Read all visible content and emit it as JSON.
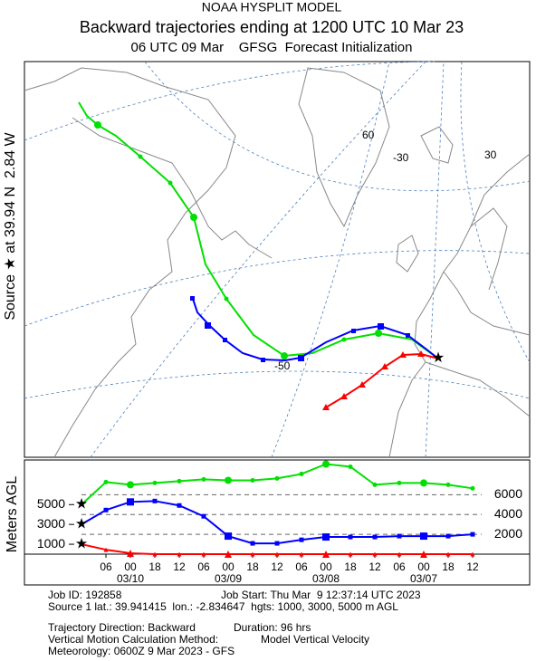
{
  "header": {
    "line1": "NOAA HYSPLIT MODEL",
    "line2": "Backward trajectories ending at 1200 UTC 10 Mar 23",
    "line3": "06 UTC 09 Mar    GFSG  Forecast Initialization"
  },
  "side_label": "Source ★ at 39.94 N  2.84 W",
  "map": {
    "grid_labels": [
      "60",
      "-30",
      "30",
      "-50"
    ]
  },
  "chart_data": {
    "type": "line",
    "y_label": "Meters AGL",
    "x": [
      0,
      6,
      12,
      18,
      24,
      30,
      36,
      42,
      48,
      54,
      60,
      66,
      72,
      78,
      84,
      90,
      96
    ],
    "xlim": [
      0,
      96
    ],
    "xticks": [
      {
        "value": 6,
        "label": "06"
      },
      {
        "value": 12,
        "label": "00"
      },
      {
        "value": 18,
        "label": "18"
      },
      {
        "value": 24,
        "label": "12"
      },
      {
        "value": 30,
        "label": "06"
      },
      {
        "value": 36,
        "label": "00"
      },
      {
        "value": 42,
        "label": "18"
      },
      {
        "value": 48,
        "label": "12"
      },
      {
        "value": 54,
        "label": "06"
      },
      {
        "value": 60,
        "label": "00"
      },
      {
        "value": 66,
        "label": "18"
      },
      {
        "value": 72,
        "label": "12"
      },
      {
        "value": 78,
        "label": "06"
      },
      {
        "value": 84,
        "label": "00"
      },
      {
        "value": 90,
        "label": "18"
      },
      {
        "value": 96,
        "label": "12"
      }
    ],
    "date_ticks": [
      {
        "value": 12,
        "label": "03/10"
      },
      {
        "value": 36,
        "label": "03/09"
      },
      {
        "value": 60,
        "label": "03/08"
      },
      {
        "value": 84,
        "label": "03/07"
      }
    ],
    "ylim": [
      0,
      9500
    ],
    "yticks": [
      1000,
      3000,
      5000
    ],
    "y2lim": [
      0,
      9500
    ],
    "y2ticks": [
      2000,
      4000,
      6000
    ],
    "grid": true,
    "series": [
      {
        "name": "5000",
        "color": "#00e000",
        "values": [
          5000,
          7270,
          7000,
          7180,
          7360,
          7550,
          7450,
          7450,
          7640,
          8090,
          9090,
          8820,
          7000,
          7180,
          7180,
          7000,
          6640
        ]
      },
      {
        "name": "3000",
        "color": "#0000ff",
        "values": [
          3000,
          4450,
          5270,
          5360,
          4910,
          3820,
          1820,
          1090,
          1090,
          1450,
          1730,
          1730,
          1730,
          1820,
          1820,
          1820,
          2000
        ]
      },
      {
        "name": "1000",
        "color": "#ff0000",
        "values": [
          1000,
          450,
          90,
          0,
          0,
          0,
          0,
          0,
          0,
          0,
          0,
          0,
          0,
          0,
          0,
          0,
          0
        ]
      }
    ]
  },
  "info": {
    "job_id": "Job ID: 192858",
    "job_start": "Job Start: Thu Mar  9 12:37:14 UTC 2023",
    "source": "Source 1 lat.: 39.941415  lon.: -2.834647  hgts: 1000, 3000, 5000 m AGL",
    "direction": "Trajectory Direction: Backward",
    "duration": "Duration: 96 hrs",
    "method": "Vertical Motion Calculation Method:",
    "method_value": "Model Vertical Velocity",
    "meteorology": "Meteorology: 0600Z 9 Mar 2023 - GFS"
  }
}
